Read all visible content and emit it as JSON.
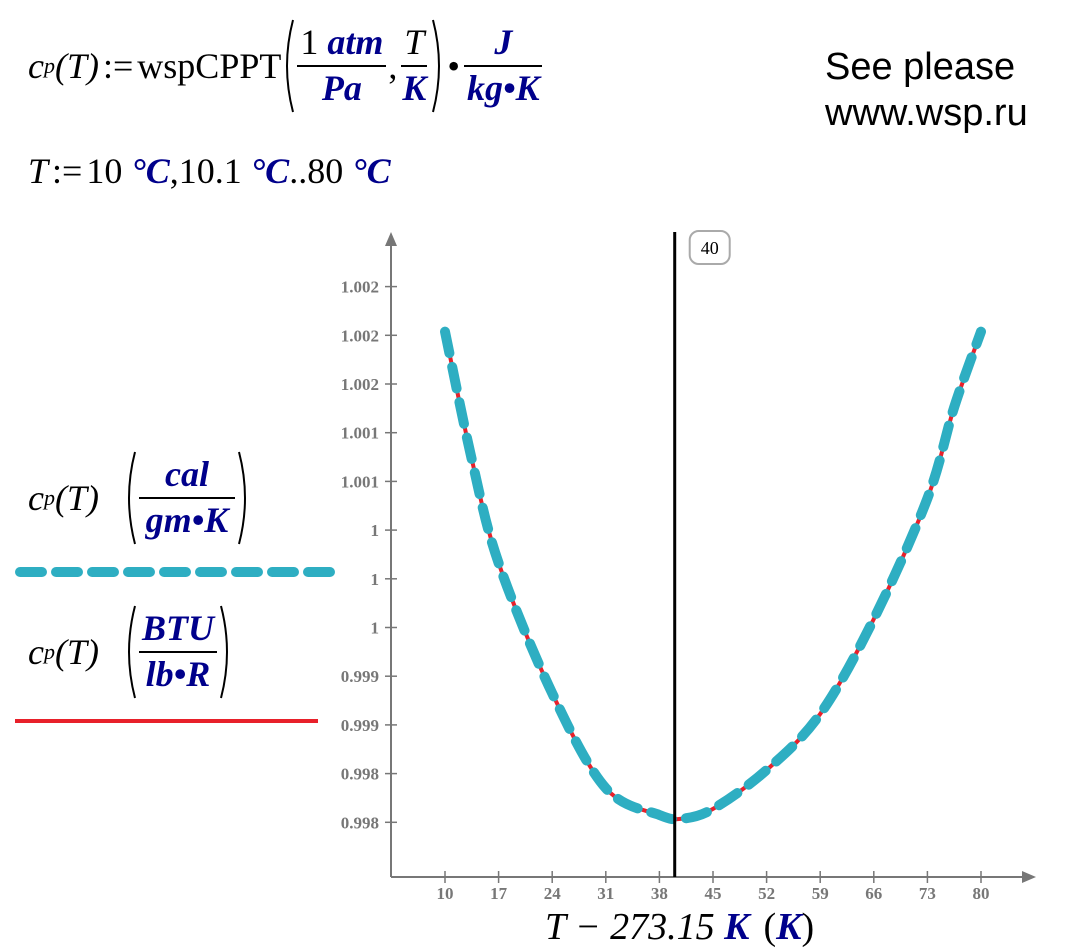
{
  "definition": {
    "lhs_base": "c",
    "lhs_sub": "p",
    "lhs_arg": "(T)",
    "assign": ":=",
    "function": "wspCPPT",
    "arg1_num": "1 ",
    "arg1_num_unit": "atm",
    "arg1_den": "Pa",
    "comma": ",",
    "arg2_num": "T",
    "arg2_den": "K",
    "dot": "•",
    "unit_num": "J",
    "unit_den": "kg•K"
  },
  "note": {
    "line1": "See please",
    "line2": "www.wsp.ru"
  },
  "range_def": {
    "var": "T",
    "assign": ":=",
    "start": "10 ",
    "start_unit": "°C",
    "step": ",10.1 ",
    "step_unit": "°C",
    "dots": "..",
    "end": "80 ",
    "end_unit": "°C"
  },
  "legend": [
    {
      "expr_base": "c",
      "expr_sub": "p",
      "expr_arg": "(T)",
      "unit_num": "cal",
      "unit_den": "gm•K",
      "color": "#2eaec2",
      "style": "dashed"
    },
    {
      "expr_base": "c",
      "expr_sub": "p",
      "expr_arg": "(T)",
      "unit_num": "BTU",
      "unit_den": "lb•R",
      "color": "#e8202a",
      "style": "solid"
    }
  ],
  "chart_data": {
    "type": "line",
    "xlabel": {
      "expr": "T − 273.15 ",
      "unit": "K",
      "paren_unit": "K"
    },
    "xlim": [
      10,
      80
    ],
    "ylim": [
      0.9979,
      1.0023
    ],
    "x_ticks": [
      10,
      17,
      24,
      31,
      38,
      45,
      52,
      59,
      66,
      73,
      80
    ],
    "y_ticks": [
      0.9979,
      0.9983,
      0.9987,
      0.9991,
      0.9995,
      0.9999,
      1.0003,
      1.0007,
      1.0011,
      1.0015,
      1.0019,
      1.0023
    ],
    "y_tick_labels": [
      "0.998",
      "0.998",
      "0.999",
      "0.999",
      "1",
      "1",
      "1",
      "1.001",
      "1.001",
      "1.002",
      "1.002",
      "1.002"
    ],
    "marker": {
      "x": 40,
      "label": "40"
    },
    "x": [
      10,
      13.5,
      17,
      24,
      31,
      38,
      41,
      45,
      52,
      59,
      66,
      73,
      76.5,
      80
    ],
    "series": [
      {
        "values": [
          1.00193,
          1.00088,
          1.00003,
          0.99896,
          0.99818,
          0.99796,
          0.99793,
          0.99801,
          0.99833,
          0.99879,
          0.99957,
          1.00056,
          1.00131,
          1.00193
        ],
        "color": "#e8202a",
        "style": "solid"
      },
      {
        "values": [
          1.00193,
          1.00088,
          1.00003,
          0.99896,
          0.99818,
          0.99796,
          0.99793,
          0.99801,
          0.99833,
          0.99879,
          0.99957,
          1.00056,
          1.00131,
          1.00193
        ],
        "color": "#2eaec2",
        "style": "dashed"
      }
    ]
  }
}
